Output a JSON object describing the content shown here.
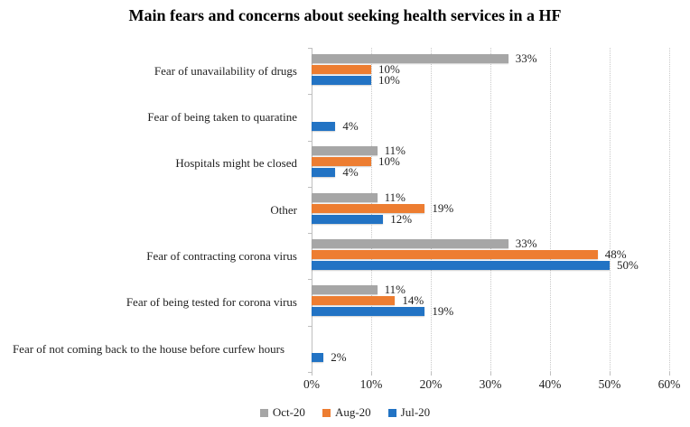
{
  "chart_data": {
    "type": "bar",
    "orientation": "horizontal",
    "title": "Main fears and concerns about seeking health services in a HF",
    "categories": [
      "Fear of unavailability of drugs",
      "Fear of being taken to quaratine",
      "Hospitals might be closed",
      "Other",
      "Fear of contracting corona virus",
      "Fear of being tested for corona virus",
      "Fear of not coming back to the house before curfew hours"
    ],
    "series": [
      {
        "name": "Oct-20",
        "color": "#A6A6A6",
        "values": [
          33,
          null,
          11,
          11,
          33,
          11,
          null
        ]
      },
      {
        "name": "Aug-20",
        "color": "#ED7D31",
        "values": [
          10,
          null,
          10,
          19,
          48,
          14,
          null
        ]
      },
      {
        "name": "Jul-20",
        "color": "#2273C4",
        "values": [
          10,
          4,
          4,
          12,
          50,
          19,
          2
        ]
      }
    ],
    "x_tick_labels": [
      "0%",
      "10%",
      "20%",
      "30%",
      "40%",
      "50%",
      "60%"
    ],
    "xlim": [
      0,
      60
    ],
    "data_label_suffix": "%",
    "grid": "vertical-dotted",
    "legend_position": "bottom",
    "colors": {
      "text": "#1f1f1f",
      "axis": "#BFBFBF",
      "gridline": "#C9C9C9",
      "background": "#FFFFFF"
    }
  }
}
